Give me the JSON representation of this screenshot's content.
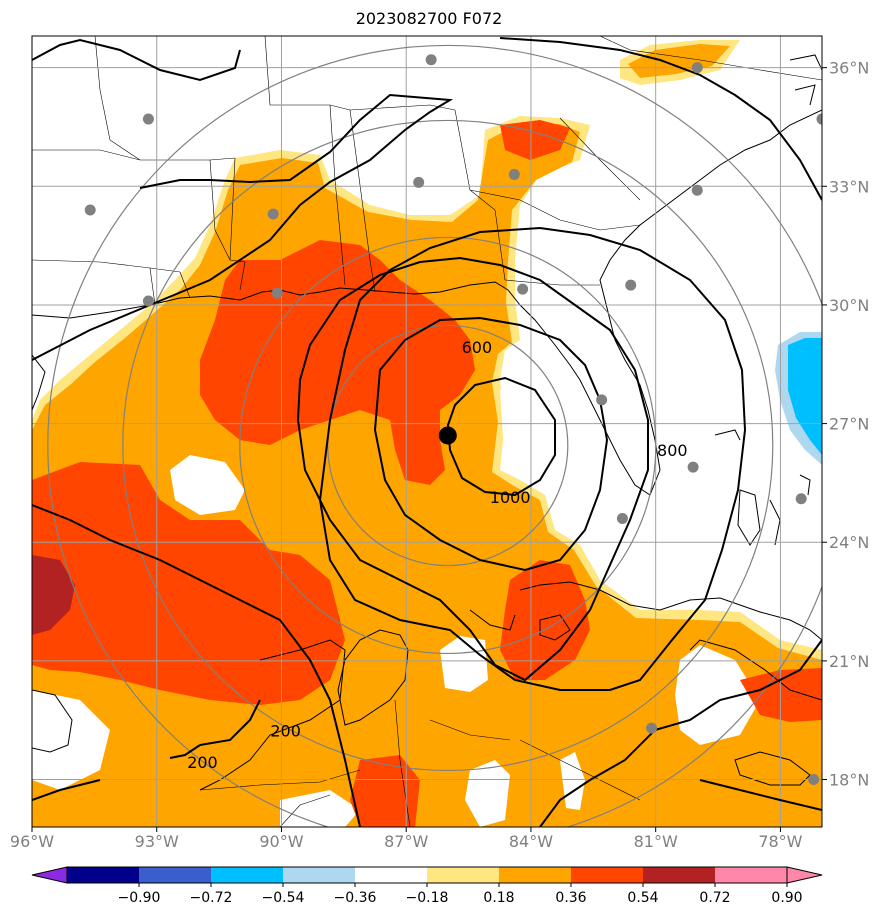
{
  "title": "2023082700 F072",
  "map": {
    "lon_range": [
      -96,
      -77
    ],
    "lat_range": [
      16.8,
      36.8
    ],
    "lon_ticks": [
      {
        "value": -96,
        "label": "96°W"
      },
      {
        "value": -93,
        "label": "93°W"
      },
      {
        "value": -90,
        "label": "90°W"
      },
      {
        "value": -87,
        "label": "87°W"
      },
      {
        "value": -84,
        "label": "84°W"
      },
      {
        "value": -81,
        "label": "81°W"
      },
      {
        "value": -78,
        "label": "78°W"
      }
    ],
    "lat_ticks": [
      {
        "value": 36,
        "label": "36°N"
      },
      {
        "value": 33,
        "label": "33°N"
      },
      {
        "value": 30,
        "label": "30°N"
      },
      {
        "value": 27,
        "label": "27°N"
      },
      {
        "value": 24,
        "label": "24°N"
      },
      {
        "value": 21,
        "label": "21°N"
      },
      {
        "value": 18,
        "label": "18°N"
      }
    ],
    "storm_center": {
      "lon": -86.0,
      "lat": 26.7
    },
    "contour_labels": [
      {
        "text": "600",
        "lon": -85.3,
        "lat": 28.9
      },
      {
        "text": "800",
        "lon": -80.6,
        "lat": 26.3
      },
      {
        "text": "1000",
        "lon": -84.5,
        "lat": 25.1
      },
      {
        "text": "200",
        "lon": -89.9,
        "lat": 19.2
      },
      {
        "text": "200",
        "lon": -91.9,
        "lat": 18.4
      }
    ],
    "stations": [
      {
        "lon": -86.4,
        "lat": 36.2
      },
      {
        "lon": -80.0,
        "lat": 36.0
      },
      {
        "lon": -93.2,
        "lat": 34.7
      },
      {
        "lon": -77.0,
        "lat": 34.7
      },
      {
        "lon": -86.7,
        "lat": 33.1
      },
      {
        "lon": -84.4,
        "lat": 33.3
      },
      {
        "lon": -80.0,
        "lat": 32.9
      },
      {
        "lon": -94.6,
        "lat": 32.4
      },
      {
        "lon": -90.2,
        "lat": 32.3
      },
      {
        "lon": -90.1,
        "lat": 30.3
      },
      {
        "lon": -93.2,
        "lat": 30.1
      },
      {
        "lon": -84.2,
        "lat": 30.4
      },
      {
        "lon": -81.6,
        "lat": 30.5
      },
      {
        "lon": -82.3,
        "lat": 27.6
      },
      {
        "lon": -80.1,
        "lat": 25.9
      },
      {
        "lon": -77.5,
        "lat": 25.1
      },
      {
        "lon": -81.8,
        "lat": 24.6
      },
      {
        "lon": -81.1,
        "lat": 19.3
      },
      {
        "lon": -77.2,
        "lat": 18.0
      }
    ],
    "colors": {
      "land_water": "#ffffff",
      "c018": "#ffe680",
      "c036": "#ffa500",
      "c054": "#ff4500",
      "c072": "#b22222",
      "c090": "#ff88aa",
      "blue": "#00bfff",
      "lightblue": "#add8f0",
      "grid": "#a0a0a0",
      "ring": "#808080"
    }
  },
  "colorbar": {
    "labels": [
      "−0.90",
      "−0.72",
      "−0.54",
      "−0.36",
      "−0.18",
      "0.18",
      "0.36",
      "0.54",
      "0.72",
      "0.90"
    ],
    "colors": [
      "#8a2be2",
      "#00008b",
      "#3a5fcd",
      "#00bfff",
      "#add8f0",
      "#ffffff",
      "#ffe680",
      "#ffa500",
      "#ff4500",
      "#b22222",
      "#ff88aa",
      "#ff88aa"
    ]
  }
}
